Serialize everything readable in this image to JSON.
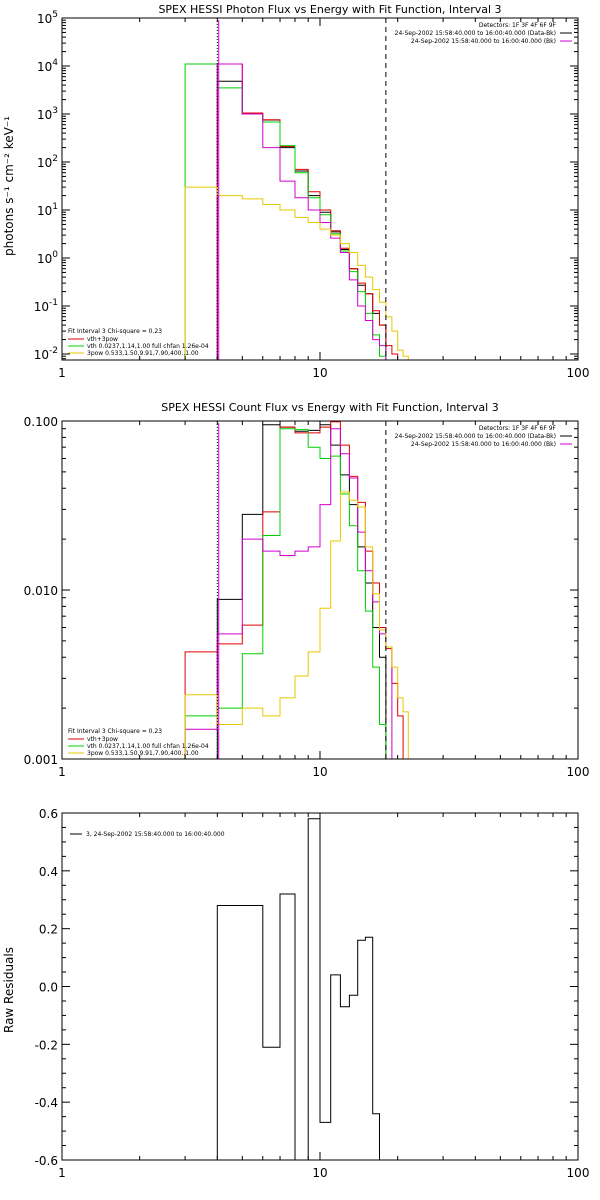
{
  "chart_data": [
    {
      "type": "line",
      "title": "SPEX HESSI Photon Flux vs Energy with Fit Function, Interval 3",
      "ylabel": "photons s⁻¹ cm⁻² keV⁻¹",
      "xlabel": "",
      "x_scale": "log",
      "y_scale": "log",
      "xlim": [
        1,
        100
      ],
      "ylim": [
        0.0075,
        100000
      ],
      "x_ticks": [
        {
          "v": 1,
          "label": "1"
        },
        {
          "v": 10,
          "label": "10"
        },
        {
          "v": 100,
          "label": "100"
        }
      ],
      "y_ticks": [
        {
          "v": 0.01,
          "base": "10",
          "exp": "-2"
        },
        {
          "v": 0.1,
          "base": "10",
          "exp": "-1"
        },
        {
          "v": 1,
          "base": "10",
          "exp": "0"
        },
        {
          "v": 10,
          "base": "10",
          "exp": "1"
        },
        {
          "v": 100,
          "base": "10",
          "exp": "2"
        },
        {
          "v": 1000,
          "base": "10",
          "exp": "3"
        },
        {
          "v": 10000,
          "base": "10",
          "exp": "4"
        },
        {
          "v": 100000,
          "base": "10",
          "exp": "5"
        }
      ],
      "vlines": [
        {
          "x": 4.0,
          "style": "dotted"
        },
        {
          "x": 18.0,
          "style": "dashed"
        }
      ],
      "magenta_marker_x": 4.05,
      "info": [
        "Detectors: 1F 3F 4F 6F 9F",
        "24-Sep-2002 15:58:40.000 to 16:00:40.000 (Data-Bk)",
        "24-Sep-2002 15:58:40.000 to 16:00:40.000 (Bk)"
      ],
      "info_swatches": [
        "#000000",
        "#d000d0"
      ],
      "fit_legend": {
        "header": "Fit Interval 3   Chi-square = 0.23",
        "items": [
          {
            "text": "vth+3pow",
            "color": "#e00000"
          },
          {
            "text": "vth 0.0237,1.14,1.00  full chfan 1.26e-04",
            "color": "#00d000"
          },
          {
            "text": "3pow 0.533,1.50,9.91,7.90,400.,1.00",
            "color": "#e8c800"
          }
        ]
      },
      "series": [
        {
          "color": "#000000",
          "edges": [
            4,
            5,
            6,
            7,
            8,
            9,
            10,
            11,
            12,
            13,
            14,
            15,
            16,
            17,
            18
          ],
          "values": [
            4800,
            1000,
            750,
            200,
            65,
            20,
            9,
            3.5,
            1.5,
            0.6,
            0.27,
            0.18,
            0.07,
            0.04
          ]
        },
        {
          "color": "#e00000",
          "edges": [
            4,
            5,
            6,
            7,
            8,
            9,
            10,
            11,
            12,
            13,
            14,
            15,
            16,
            17,
            18,
            19,
            20,
            21
          ],
          "values": [
            11000,
            1050,
            760,
            210,
            70,
            24,
            10,
            3.7,
            1.6,
            0.6,
            0.3,
            0.18,
            0.08,
            0.04,
            0.015,
            0.01,
            0.007
          ]
        },
        {
          "color": "#00d000",
          "edges": [
            3,
            4,
            5,
            6,
            7,
            8,
            9,
            10,
            11,
            12,
            13,
            14,
            15,
            16,
            17,
            18,
            19
          ],
          "values": [
            11000,
            3500,
            1000,
            680,
            220,
            60,
            18,
            8,
            3.2,
            1.4,
            0.52,
            0.2,
            0.07,
            0.025,
            0.009,
            0.004
          ]
        },
        {
          "color": "#d000d0",
          "edges": [
            4,
            5,
            6,
            7,
            8,
            9,
            10,
            11,
            12,
            13,
            14,
            15,
            16,
            17,
            18
          ],
          "values": [
            11000,
            1000,
            200,
            40,
            18,
            10,
            5.5,
            2.6,
            1.3,
            0.35,
            0.1,
            0.05,
            0.02,
            0.015
          ]
        },
        {
          "color": "#e8c800",
          "edges": [
            3,
            4,
            5,
            6,
            7,
            8,
            9,
            10,
            11,
            12,
            13,
            14,
            15,
            16,
            17,
            18,
            19,
            20,
            21,
            22
          ],
          "values": [
            30,
            20,
            17,
            13,
            10,
            7,
            5.5,
            4,
            3,
            2,
            1.3,
            0.7,
            0.4,
            0.22,
            0.12,
            0.06,
            0.03,
            0.012,
            0.009
          ]
        }
      ]
    },
    {
      "type": "line",
      "title": "SPEX HESSI Count Flux vs Energy with Fit Function, Interval 3",
      "ylabel": "",
      "xlabel": "",
      "x_scale": "log",
      "y_scale": "log",
      "xlim": [
        1,
        100
      ],
      "ylim": [
        0.001,
        0.1
      ],
      "x_ticks": [
        {
          "v": 1,
          "label": "1"
        },
        {
          "v": 10,
          "label": "10"
        },
        {
          "v": 100,
          "label": "100"
        }
      ],
      "y_ticks": [
        {
          "v": 0.001,
          "label": "0.001"
        },
        {
          "v": 0.01,
          "label": "0.010"
        },
        {
          "v": 0.1,
          "label": "0.100"
        }
      ],
      "vlines": [
        {
          "x": 4.0,
          "style": "dotted"
        },
        {
          "x": 18.0,
          "style": "dashed"
        }
      ],
      "magenta_marker_x": 4.05,
      "info": [
        "Detectors: 1F 3F 4F 6F 9F",
        "24-Sep-2002 15:58:40.000 to 16:00:40.000 (Data-Bk)",
        "24-Sep-2002 15:58:40.000 to 16:00:40.000 (Bk)"
      ],
      "info_swatches": [
        "#000000",
        "#d000d0"
      ],
      "fit_legend": {
        "header": "Fit Interval 3   Chi-square = 0.23",
        "items": [
          {
            "text": "vth+3pow",
            "color": "#e00000"
          },
          {
            "text": "vth 0.0237,1.14,1.00  full chfan 1.26e-04",
            "color": "#00d000"
          },
          {
            "text": "3pow 0.533,1.50,9.91,7.90,400.,1.00",
            "color": "#e8c800"
          }
        ]
      },
      "series": [
        {
          "color": "#000000",
          "edges": [
            4,
            5,
            6,
            7,
            8,
            9,
            10,
            11,
            12,
            13,
            14,
            15,
            16,
            17,
            18
          ],
          "values": [
            0.0088,
            0.028,
            0.095,
            0.092,
            0.087,
            0.088,
            0.095,
            0.072,
            0.048,
            0.032,
            0.018,
            0.011,
            0.006,
            0.004
          ]
        },
        {
          "color": "#e00000",
          "edges": [
            3,
            4,
            5,
            6,
            7,
            8,
            9,
            10,
            11,
            12,
            13,
            14,
            15,
            16,
            17,
            18,
            19,
            20,
            21
          ],
          "values": [
            0.0043,
            0.0048,
            0.0062,
            0.029,
            0.092,
            0.085,
            0.085,
            0.092,
            0.099,
            0.072,
            0.047,
            0.033,
            0.017,
            0.011,
            0.006,
            0.0045,
            0.0028,
            0.0018
          ]
        },
        {
          "color": "#00d000",
          "edges": [
            3,
            4,
            5,
            6,
            7,
            8,
            9,
            10,
            11,
            12,
            13,
            14,
            15,
            16,
            17,
            18,
            19
          ],
          "values": [
            0.0018,
            0.002,
            0.0042,
            0.021,
            0.09,
            0.089,
            0.07,
            0.06,
            0.062,
            0.037,
            0.024,
            0.013,
            0.0075,
            0.0035,
            0.0016,
            0.001
          ]
        },
        {
          "color": "#d000d0",
          "edges": [
            3,
            4,
            5,
            6,
            7,
            8,
            9,
            10,
            11,
            12,
            13,
            14,
            15,
            16,
            17,
            18,
            19
          ],
          "values": [
            0.0015,
            0.0055,
            0.02,
            0.017,
            0.016,
            0.017,
            0.018,
            0.032,
            0.09,
            0.064,
            0.046,
            0.022,
            0.013,
            0.0085,
            0.0055,
            0.0046
          ]
        },
        {
          "color": "#e8c800",
          "edges": [
            3,
            4,
            5,
            6,
            7,
            8,
            9,
            10,
            11,
            12,
            13,
            14,
            15,
            16,
            17,
            18,
            19,
            20,
            21,
            22
          ],
          "values": [
            0.0024,
            0.0016,
            0.002,
            0.0018,
            0.0023,
            0.0031,
            0.0043,
            0.0078,
            0.0195,
            0.038,
            0.034,
            0.031,
            0.018,
            0.0095,
            0.0058,
            0.0046,
            0.0035,
            0.0023,
            0.0019
          ]
        }
      ]
    },
    {
      "type": "line",
      "title": "",
      "ylabel": "Raw Residuals",
      "xlabel": "",
      "x_scale": "log",
      "y_scale": "linear",
      "xlim": [
        1,
        100
      ],
      "ylim": [
        -0.6,
        0.6
      ],
      "x_ticks": [
        {
          "v": 1,
          "label": "1"
        },
        {
          "v": 10,
          "label": "10"
        },
        {
          "v": 100,
          "label": "100"
        }
      ],
      "y_ticks": [
        {
          "v": 0.6,
          "label": "0.6"
        },
        {
          "v": 0.4,
          "label": "0.4"
        },
        {
          "v": 0.2,
          "label": "0.2"
        },
        {
          "v": 0.0,
          "label": "0.0"
        },
        {
          "v": -0.2,
          "label": "-0.2"
        },
        {
          "v": -0.4,
          "label": "-0.4"
        },
        {
          "v": -0.6,
          "label": "-0.6"
        }
      ],
      "legend": {
        "text": "3, 24-Sep-2002 15:58:40.000 to 16:00:40.000",
        "color": "#000000"
      },
      "series": [
        {
          "color": "#000000",
          "edges": [
            4,
            5,
            6,
            7,
            8,
            9,
            10,
            11,
            12,
            13,
            14,
            15,
            16,
            17,
            18,
            19
          ],
          "values": [
            0.28,
            0.28,
            -0.21,
            0.32,
            -0.61,
            0.58,
            -0.47,
            0.04,
            -0.07,
            -0.03,
            0.16,
            0.17,
            -0.44,
            -0.6,
            -0.6
          ]
        }
      ]
    }
  ]
}
